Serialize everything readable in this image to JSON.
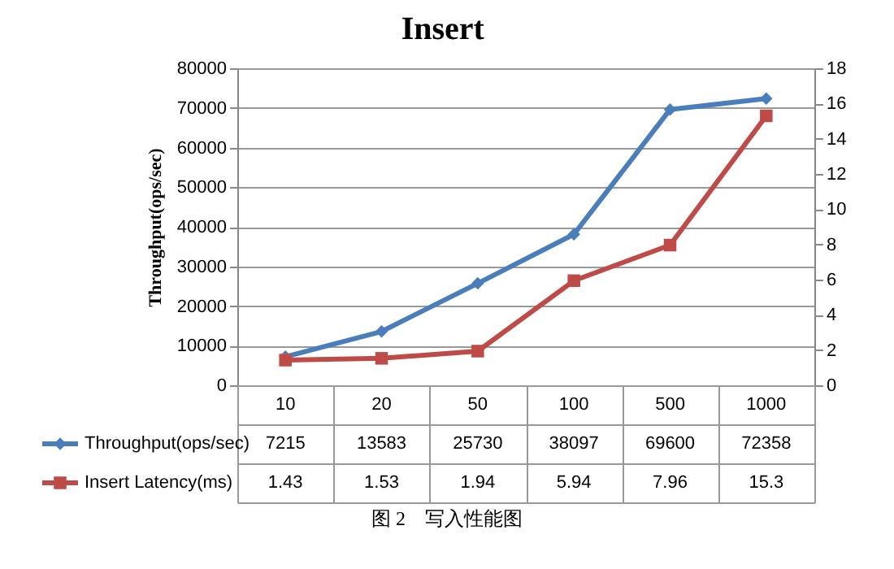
{
  "chart_data": {
    "type": "line",
    "title": "Insert",
    "ylabel": "Throughput(ops/sec)",
    "categories": [
      "10",
      "20",
      "50",
      "100",
      "500",
      "1000"
    ],
    "series": [
      {
        "name": "Throughput(ops/sec)",
        "color": "#4a7ebb",
        "marker": "diamond",
        "values": [
          7215,
          13583,
          25730,
          38097,
          69600,
          72358
        ]
      },
      {
        "name": "Insert Latency(ms)",
        "color": "#be4b48",
        "marker": "square",
        "axis": "y2",
        "values": [
          1.43,
          1.53,
          1.94,
          5.94,
          7.96,
          15.3
        ]
      }
    ],
    "ylim": [
      0,
      80000
    ],
    "yticks": [
      0,
      10000,
      20000,
      30000,
      40000,
      50000,
      60000,
      70000,
      80000
    ],
    "y2lim": [
      0,
      18
    ],
    "y2ticks": [
      0,
      2,
      4,
      6,
      8,
      10,
      12,
      14,
      16,
      18
    ],
    "grid": "y",
    "legend": "bottom left",
    "data_labels": true,
    "annotations": [
      "图 2　写入性能图"
    ]
  }
}
